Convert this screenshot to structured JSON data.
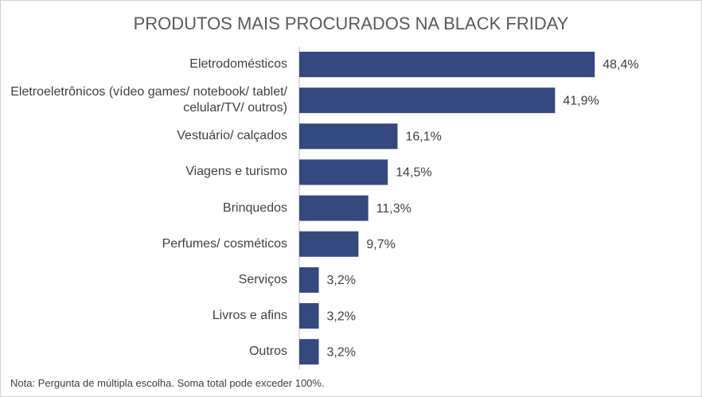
{
  "chart_data": {
    "type": "bar",
    "orientation": "horizontal",
    "title": "PRODUTOS MAIS PROCURADOS NA BLACK FRIDAY",
    "categories": [
      "Eletrodomésticos",
      "Eletroeletrônicos (vídeo games/ notebook/ tablet/ celular/TV/ outros)",
      "Vestuário/ calçados",
      "Viagens e turismo",
      "Brinquedos",
      "Perfumes/ cosméticos",
      "Serviços",
      "Livros e afins",
      "Outros"
    ],
    "values": [
      48.4,
      41.9,
      16.1,
      14.5,
      11.3,
      9.7,
      3.2,
      3.2,
      3.2
    ],
    "value_labels": [
      "48,4%",
      "41,9%",
      "16,1%",
      "14,5%",
      "11,3%",
      "9,7%",
      "3,2%",
      "3,2%",
      "3,2%"
    ],
    "color": "#34497f",
    "note": "Nota: Pergunta de múltipla escolha. Soma total pode exceder 100%."
  }
}
